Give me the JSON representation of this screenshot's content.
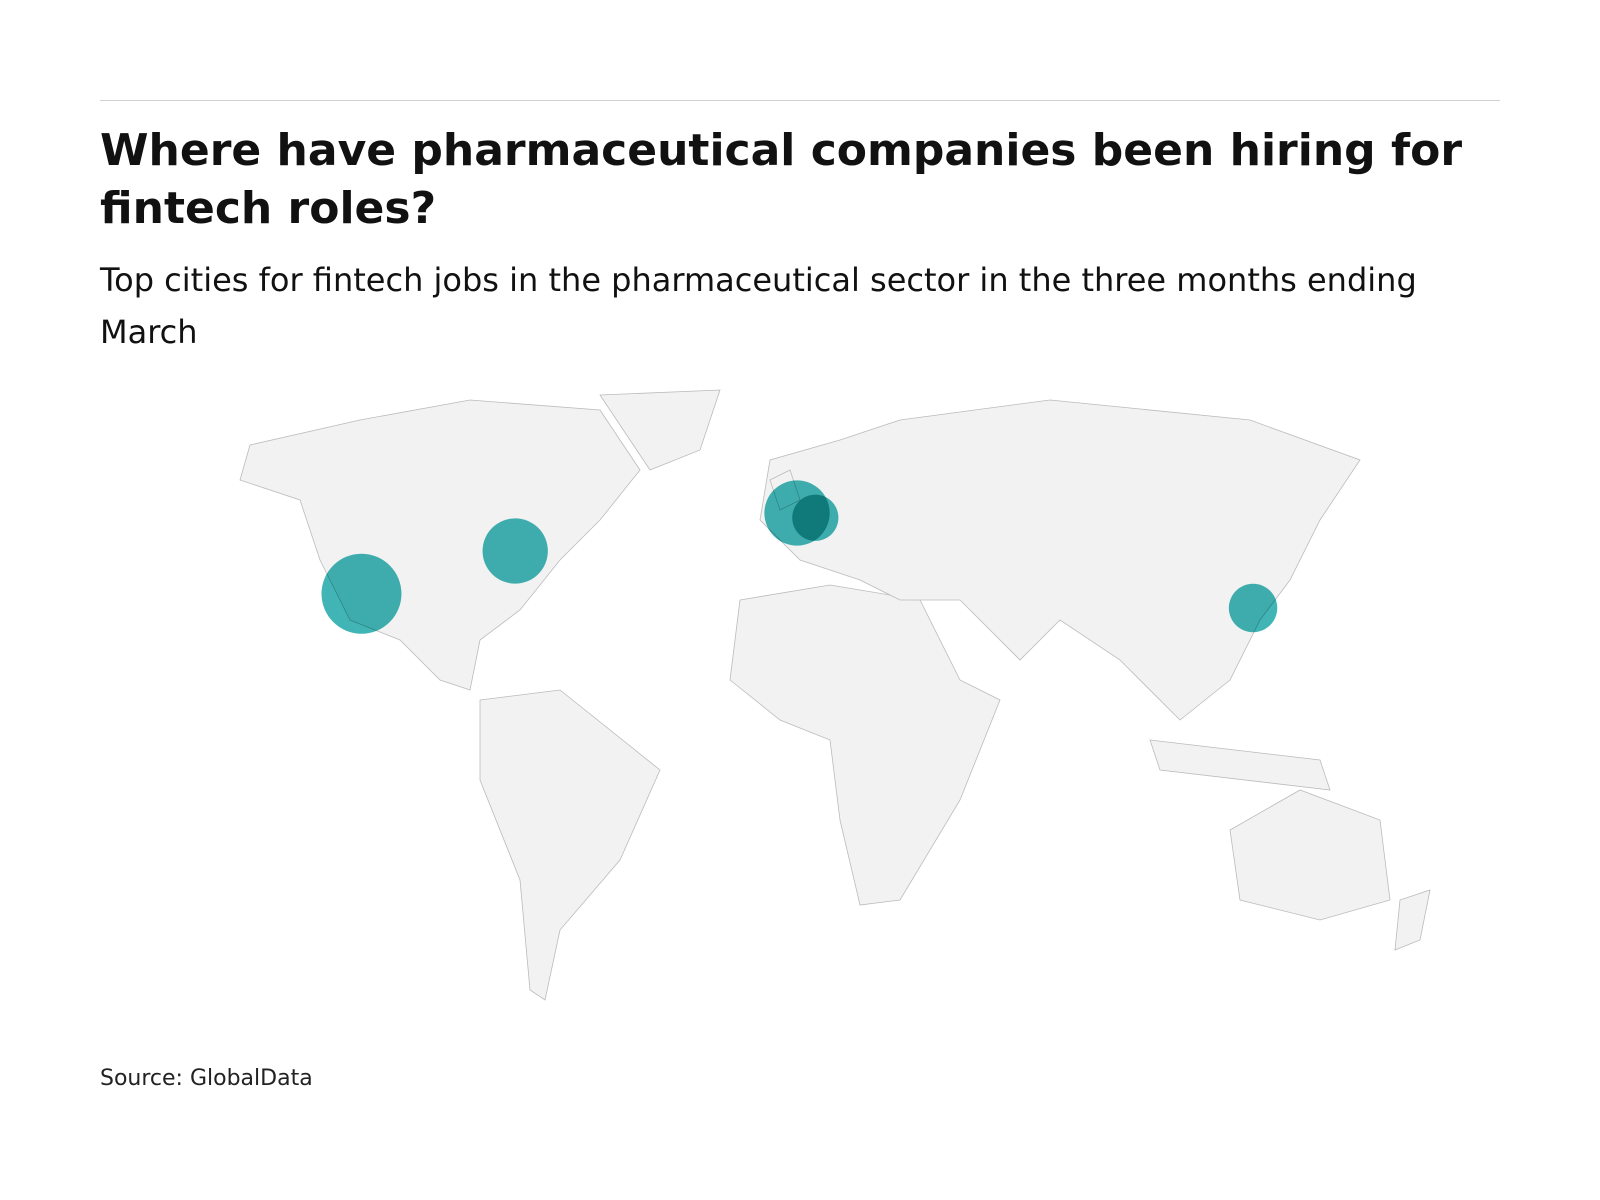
{
  "title": "Where have pharmaceutical companies been hiring for fintech roles?",
  "subtitle": "Top cities for fintech jobs in the pharmaceutical sector in the three months ending March",
  "source": "Source: GlobalData",
  "chart_data": {
    "type": "bubble-map",
    "color": "#20a8a8",
    "bubbles": [
      {
        "lon": -122,
        "lat": 35,
        "value": 30
      },
      {
        "lon": -80,
        "lat": 44,
        "value": 20
      },
      {
        "lon": -3,
        "lat": 52,
        "value": 20
      },
      {
        "lon": 2,
        "lat": 51,
        "value": 10
      },
      {
        "lon": 121.6,
        "lat": 32,
        "value": 11
      }
    ]
  }
}
